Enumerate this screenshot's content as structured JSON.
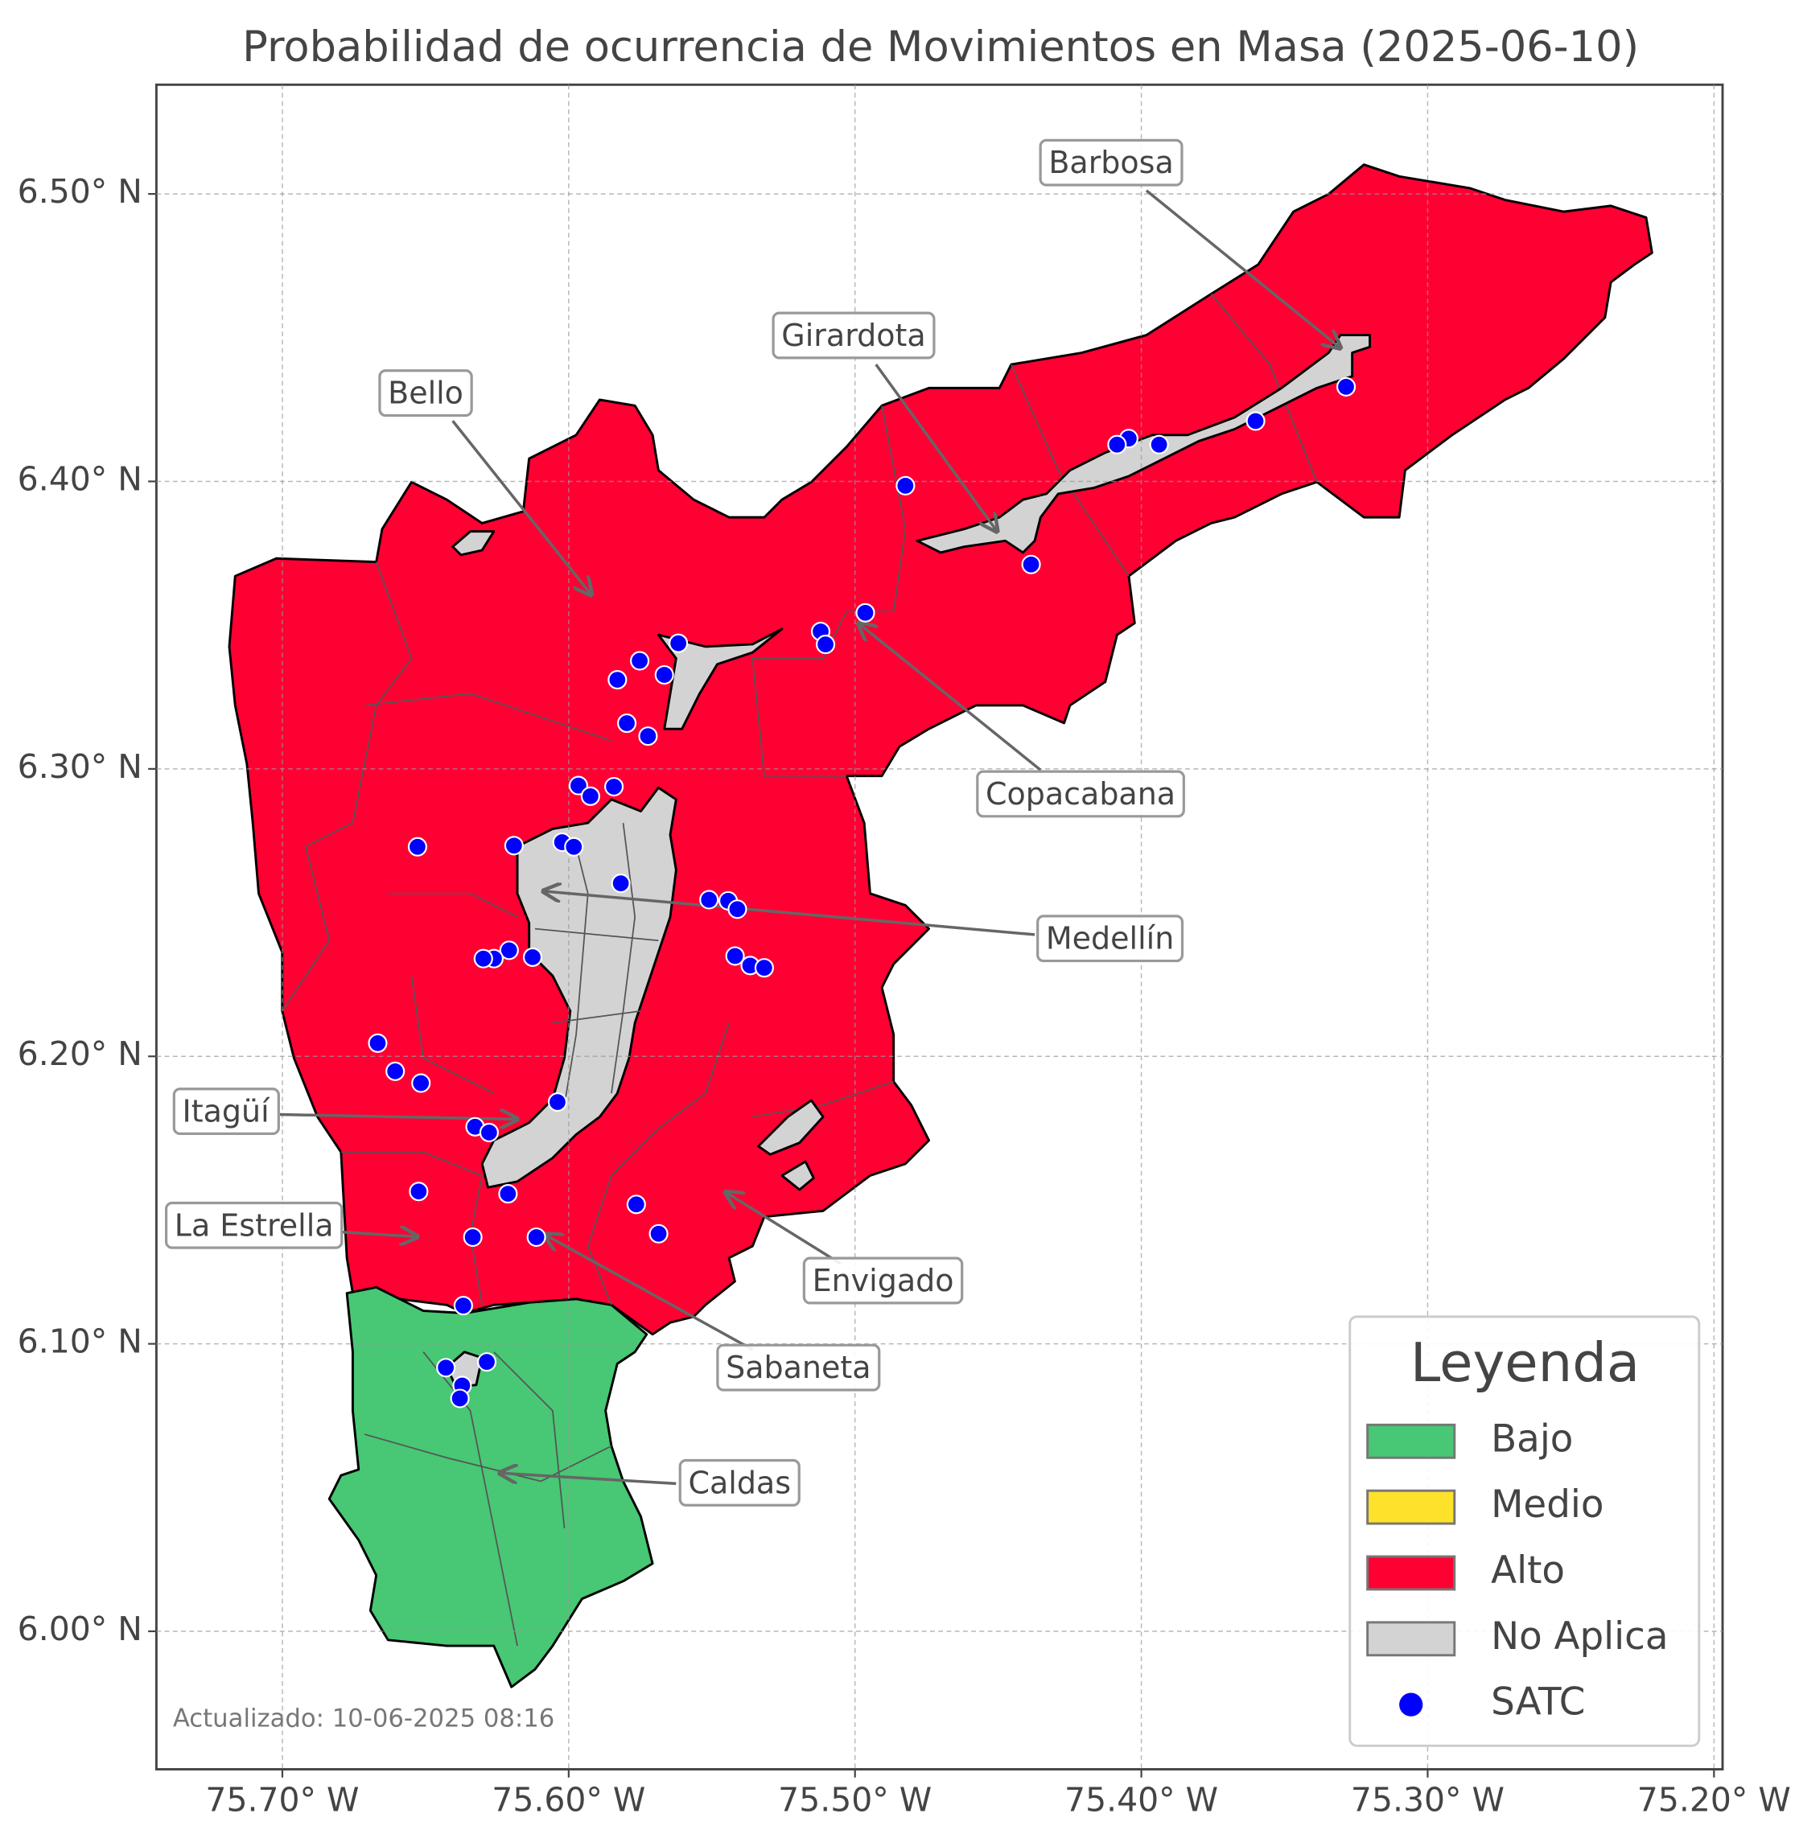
{
  "chart_data": {
    "type": "scatter",
    "title": "Probabilidad de ocurrencia de Movimientos en Masa (2025-06-10)",
    "xlim": [
      -75.744,
      -75.197
    ],
    "ylim": [
      5.952,
      6.538
    ],
    "xticks": [
      {
        "value": -75.7,
        "label": "75.70° W"
      },
      {
        "value": -75.6,
        "label": "75.60° W"
      },
      {
        "value": -75.5,
        "label": "75.50° W"
      },
      {
        "value": -75.4,
        "label": "75.40° W"
      },
      {
        "value": -75.3,
        "label": "75.30° W"
      },
      {
        "value": -75.2,
        "label": "75.20° W"
      }
    ],
    "yticks": [
      {
        "value": 6.0,
        "label": "6.00° N"
      },
      {
        "value": 6.1,
        "label": "6.10° N"
      },
      {
        "value": 6.2,
        "label": "6.20° N"
      },
      {
        "value": 6.3,
        "label": "6.30° N"
      },
      {
        "value": 6.4,
        "label": "6.40° N"
      },
      {
        "value": 6.5,
        "label": "6.50° N"
      }
    ],
    "grid": true,
    "legend": {
      "title": "Leyenda",
      "position": "lower right",
      "entries": [
        {
          "name": "Bajo",
          "color": "#48c774"
        },
        {
          "name": "Medio",
          "color": "#fde12a"
        },
        {
          "name": "Alto",
          "color": "#ff0033"
        },
        {
          "name": "No Aplica",
          "color": "#d3d3d3"
        }
      ]
    },
    "series": [
      {
        "name": "SATC",
        "color": "#0000ff",
        "x": [
          -75.3285,
          -75.3601,
          -75.3938,
          -75.4044,
          -75.4085,
          -75.4824,
          -75.4385,
          -75.4964,
          -75.512,
          -75.5103,
          -75.5617,
          -75.5752,
          -75.5666,
          -75.583,
          -75.5797,
          -75.5723,
          -75.5966,
          -75.5924,
          -75.5842,
          -75.6528,
          -75.6191,
          -75.6023,
          -75.5982,
          -75.5818,
          -75.551,
          -75.5443,
          -75.5411,
          -75.5419,
          -75.5366,
          -75.5317,
          -75.6208,
          -75.6261,
          -75.6298,
          -75.6126,
          -75.6667,
          -75.6606,
          -75.6516,
          -75.6039,
          -75.6327,
          -75.6278,
          -75.6524,
          -75.6212,
          -75.5764,
          -75.5686,
          -75.6335,
          -75.6113,
          -75.6368,
          -75.6429,
          -75.6286,
          -75.6372,
          -75.638
        ],
        "y": [
          6.4329,
          6.421,
          6.4128,
          6.4149,
          6.4128,
          6.3985,
          6.3711,
          6.3543,
          6.3478,
          6.3433,
          6.3437,
          6.3376,
          6.3327,
          6.331,
          6.3159,
          6.3114,
          6.2942,
          6.2905,
          6.2938,
          6.2729,
          6.2733,
          6.2745,
          6.2729,
          6.2602,
          6.2545,
          6.2541,
          6.2512,
          6.2349,
          6.2316,
          6.2308,
          6.2369,
          6.234,
          6.234,
          6.2345,
          6.2046,
          6.1948,
          6.1907,
          6.1841,
          6.1755,
          6.1735,
          6.153,
          6.1522,
          6.1485,
          6.1383,
          6.1371,
          6.1371,
          6.1133,
          6.0917,
          6.0937,
          6.0855,
          6.081
        ]
      }
    ],
    "annotations": [
      "Barbosa",
      "Girardota",
      "Bello",
      "Copacabana",
      "Medellín",
      "Itagüí",
      "La Estrella",
      "Envigado",
      "Sabaneta",
      "Caldas"
    ],
    "footnote": "Actualizado: 10-06-2025 08:16"
  }
}
